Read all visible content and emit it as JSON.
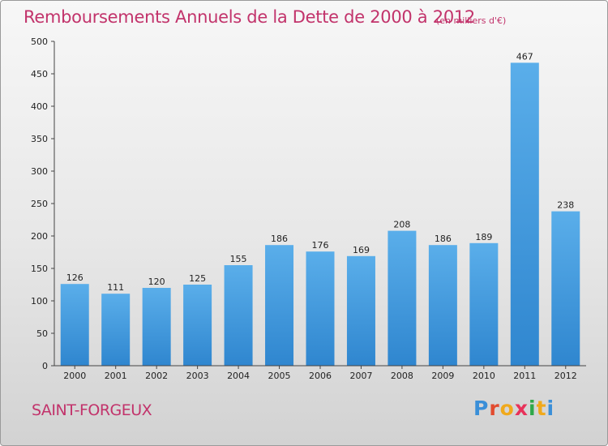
{
  "chart_data": {
    "type": "bar",
    "title": "Remboursements Annuels de la Dette de 2000 à 2012",
    "unit_note": "(en milliers d'€)",
    "categories": [
      "2000",
      "2001",
      "2002",
      "2003",
      "2004",
      "2005",
      "2006",
      "2007",
      "2008",
      "2009",
      "2010",
      "2011",
      "2012"
    ],
    "values": [
      126,
      111,
      120,
      125,
      155,
      186,
      176,
      169,
      208,
      186,
      189,
      467,
      238
    ],
    "ylim": [
      0,
      500
    ],
    "yticks": [
      0,
      50,
      100,
      150,
      200,
      250,
      300,
      350,
      400,
      450,
      500
    ],
    "grid": false,
    "bar_color": "#4a9fe0",
    "xlabel": "",
    "ylabel": ""
  },
  "footer": {
    "city": "SAINT-FORGEUX",
    "logo_letters": [
      "P",
      "r",
      "o",
      "x",
      "i",
      "t",
      "i"
    ],
    "logo_colors": [
      "#3a8fd8",
      "#e24b2f",
      "#f0a91c",
      "#e8325a",
      "#2fa84a",
      "#f0a91c",
      "#3a8fd8"
    ]
  },
  "colors": {
    "accent": "#c2336b"
  }
}
